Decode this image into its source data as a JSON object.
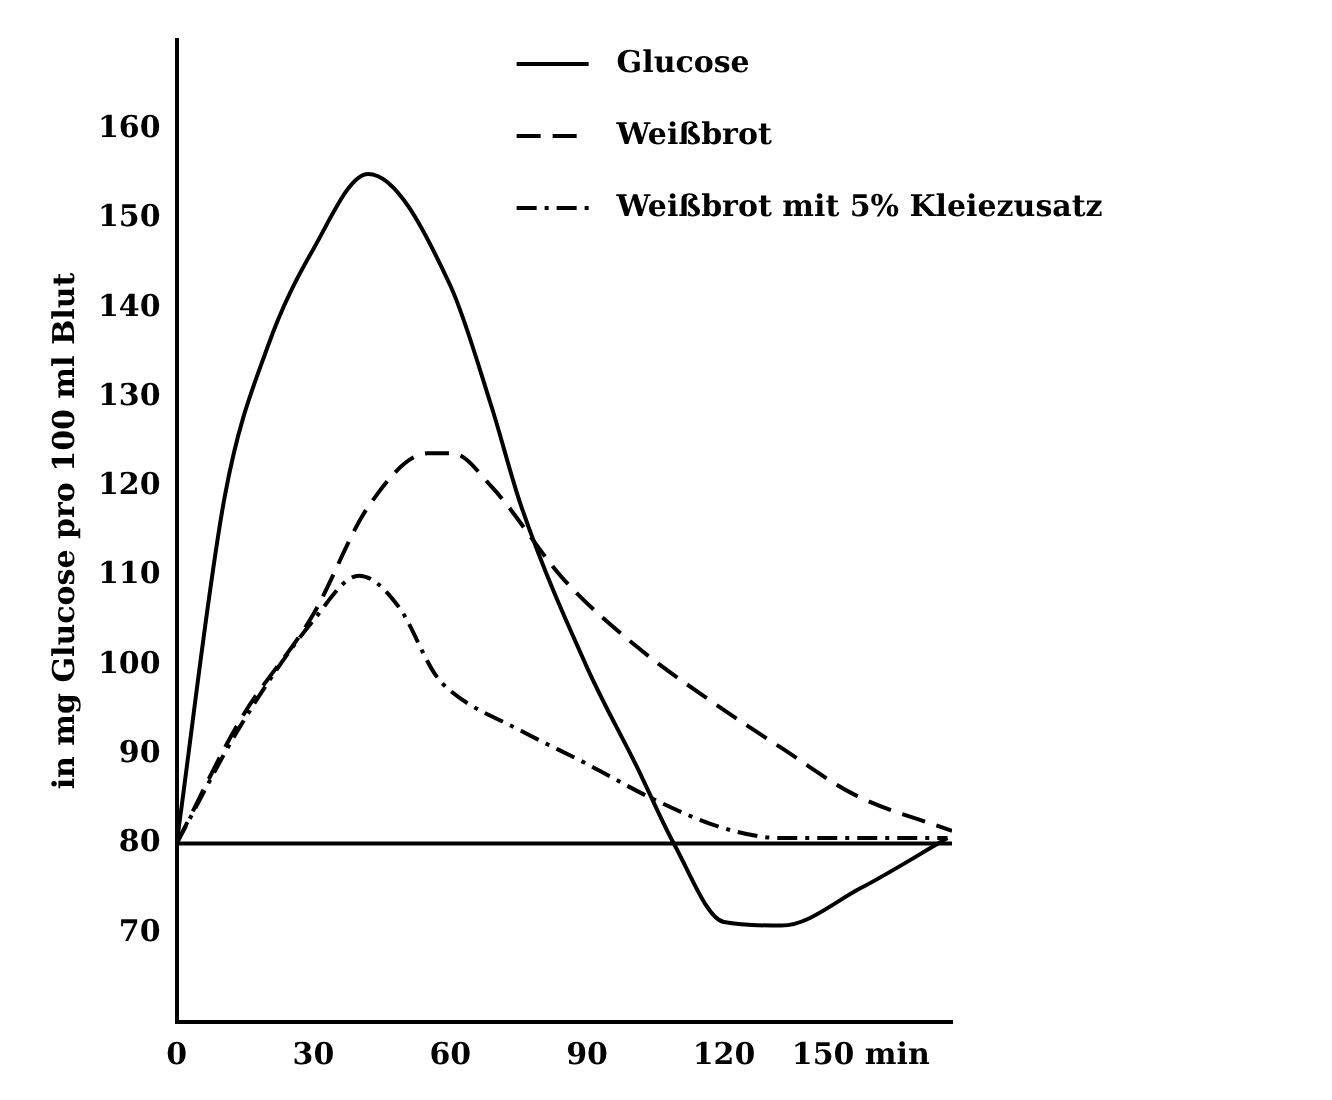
{
  "chart_data": {
    "type": "line",
    "ylabel": "in mg Glucose pro 100 ml Blut",
    "xlim": [
      0,
      170
    ],
    "xticks": [
      0,
      30,
      60,
      90,
      120,
      {
        "value": 150,
        "label": "150 min"
      }
    ],
    "ylim": [
      60,
      170
    ],
    "yticks": [
      70,
      80,
      90,
      100,
      110,
      120,
      130,
      140,
      150,
      160
    ],
    "grid": false,
    "legend": "top right",
    "marker": "none",
    "ref_lines": [
      {
        "axis": "y",
        "value": 80,
        "label": null,
        "color": "#000000"
      }
    ],
    "series": [
      {
        "name": "Glucose",
        "color": "#000000",
        "line_style": "solid",
        "x": [
          0,
          10.6,
          20,
          30,
          42,
          60,
          69,
          75.6,
          90,
          101,
          109,
          120,
          132.6,
          150,
          169
        ],
        "values": [
          80,
          119,
          135.7,
          146.6,
          155,
          142.5,
          129,
          117.7,
          99.7,
          88.5,
          80,
          71.2,
          70.8,
          75,
          80.6
        ]
      },
      {
        "name": "Weißbrot",
        "color": "#000000",
        "line_style": "dashed",
        "x": [
          0,
          13.8,
          30,
          42,
          55,
          60.5,
          69,
          85,
          101,
          117,
          132.6,
          148.5,
          170
        ],
        "values": [
          80,
          93.7,
          105.7,
          117.7,
          123.7,
          123.7,
          120,
          109.5,
          102,
          96,
          90.7,
          85.5,
          81.4
        ]
      },
      {
        "name": "Weißbrot mit 5% Kleiezusatz",
        "color": "#000000",
        "line_style": "dashdot",
        "x": [
          0,
          13.8,
          30,
          40,
          48.7,
          56.6,
          60,
          75.6,
          90,
          104,
          120,
          132.6,
          148.5,
          169
        ],
        "values": [
          80,
          93,
          105,
          110,
          106.5,
          99,
          97.1,
          92.6,
          88.9,
          85.1,
          81.7,
          80.6,
          80.6,
          80.6
        ]
      }
    ]
  }
}
